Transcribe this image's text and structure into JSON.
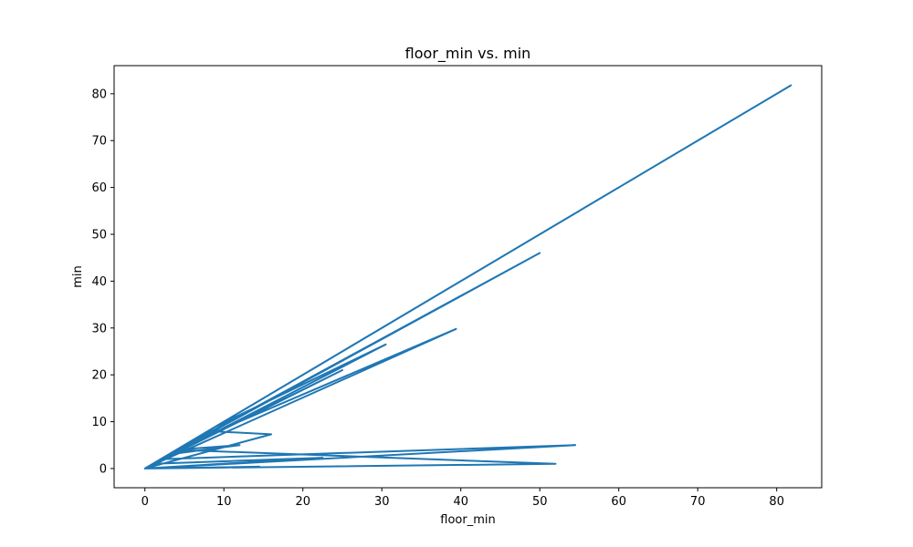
{
  "chart_data": {
    "type": "line",
    "title": "floor_min vs. min",
    "xlabel": "floor_min",
    "ylabel": "min",
    "xlim": [
      -3.9,
      85.7
    ],
    "ylim": [
      -4.1,
      86.0
    ],
    "xticks": [
      0,
      10,
      20,
      30,
      40,
      50,
      60,
      70,
      80
    ],
    "yticks": [
      0,
      10,
      20,
      30,
      40,
      50,
      60,
      70,
      80
    ],
    "grid": false,
    "series": [
      {
        "color": "#1f77b4",
        "x": [
          0,
          30,
          10,
          0,
          39.4,
          5,
          0,
          81.8,
          2,
          0,
          50,
          3,
          12,
          4,
          0,
          54.5,
          2,
          0,
          52,
          4,
          0,
          14.5,
          0,
          16,
          8,
          0,
          30.5,
          9,
          0,
          25,
          1,
          0,
          22.5,
          1,
          0,
          20,
          8,
          0,
          60,
          10,
          0,
          15,
          0
        ],
        "y": [
          0,
          30,
          10,
          0,
          29.8,
          5,
          0,
          81.8,
          2,
          0,
          46,
          3,
          5,
          4,
          0,
          5,
          2,
          0,
          1,
          4,
          0,
          0.4,
          0,
          7.3,
          8,
          0,
          26.5,
          9,
          0,
          21,
          1,
          0,
          2.3,
          1,
          0,
          20,
          8,
          0,
          60,
          10,
          0,
          15,
          0
        ]
      }
    ]
  }
}
